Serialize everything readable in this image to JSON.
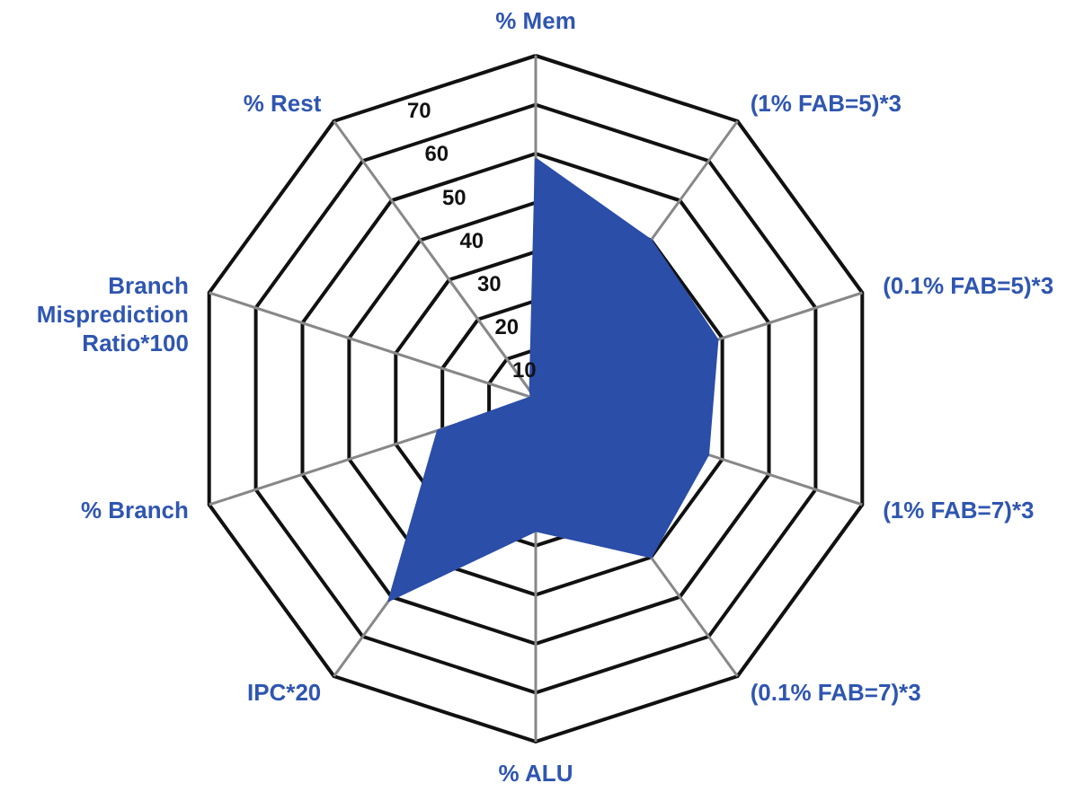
{
  "chart_data": {
    "type": "radar",
    "categories": [
      "% Mem",
      "(1% FAB=5)*3",
      "(0.1% FAB=5)*3",
      "(1% FAB=7)*3",
      "(0.1% FAB=7)*3",
      "% ALU",
      "IPC*20",
      "% Branch",
      "Branch Misprediction Ratio*100",
      "% Rest"
    ],
    "series": [
      {
        "color": "#2b4ea8",
        "values": [
          49,
          40,
          39,
          37,
          40,
          27,
          51,
          21,
          1,
          2
        ]
      }
    ],
    "ylim": [
      0,
      70
    ],
    "yticks": [
      10,
      20,
      30,
      40,
      50,
      60,
      70
    ]
  }
}
